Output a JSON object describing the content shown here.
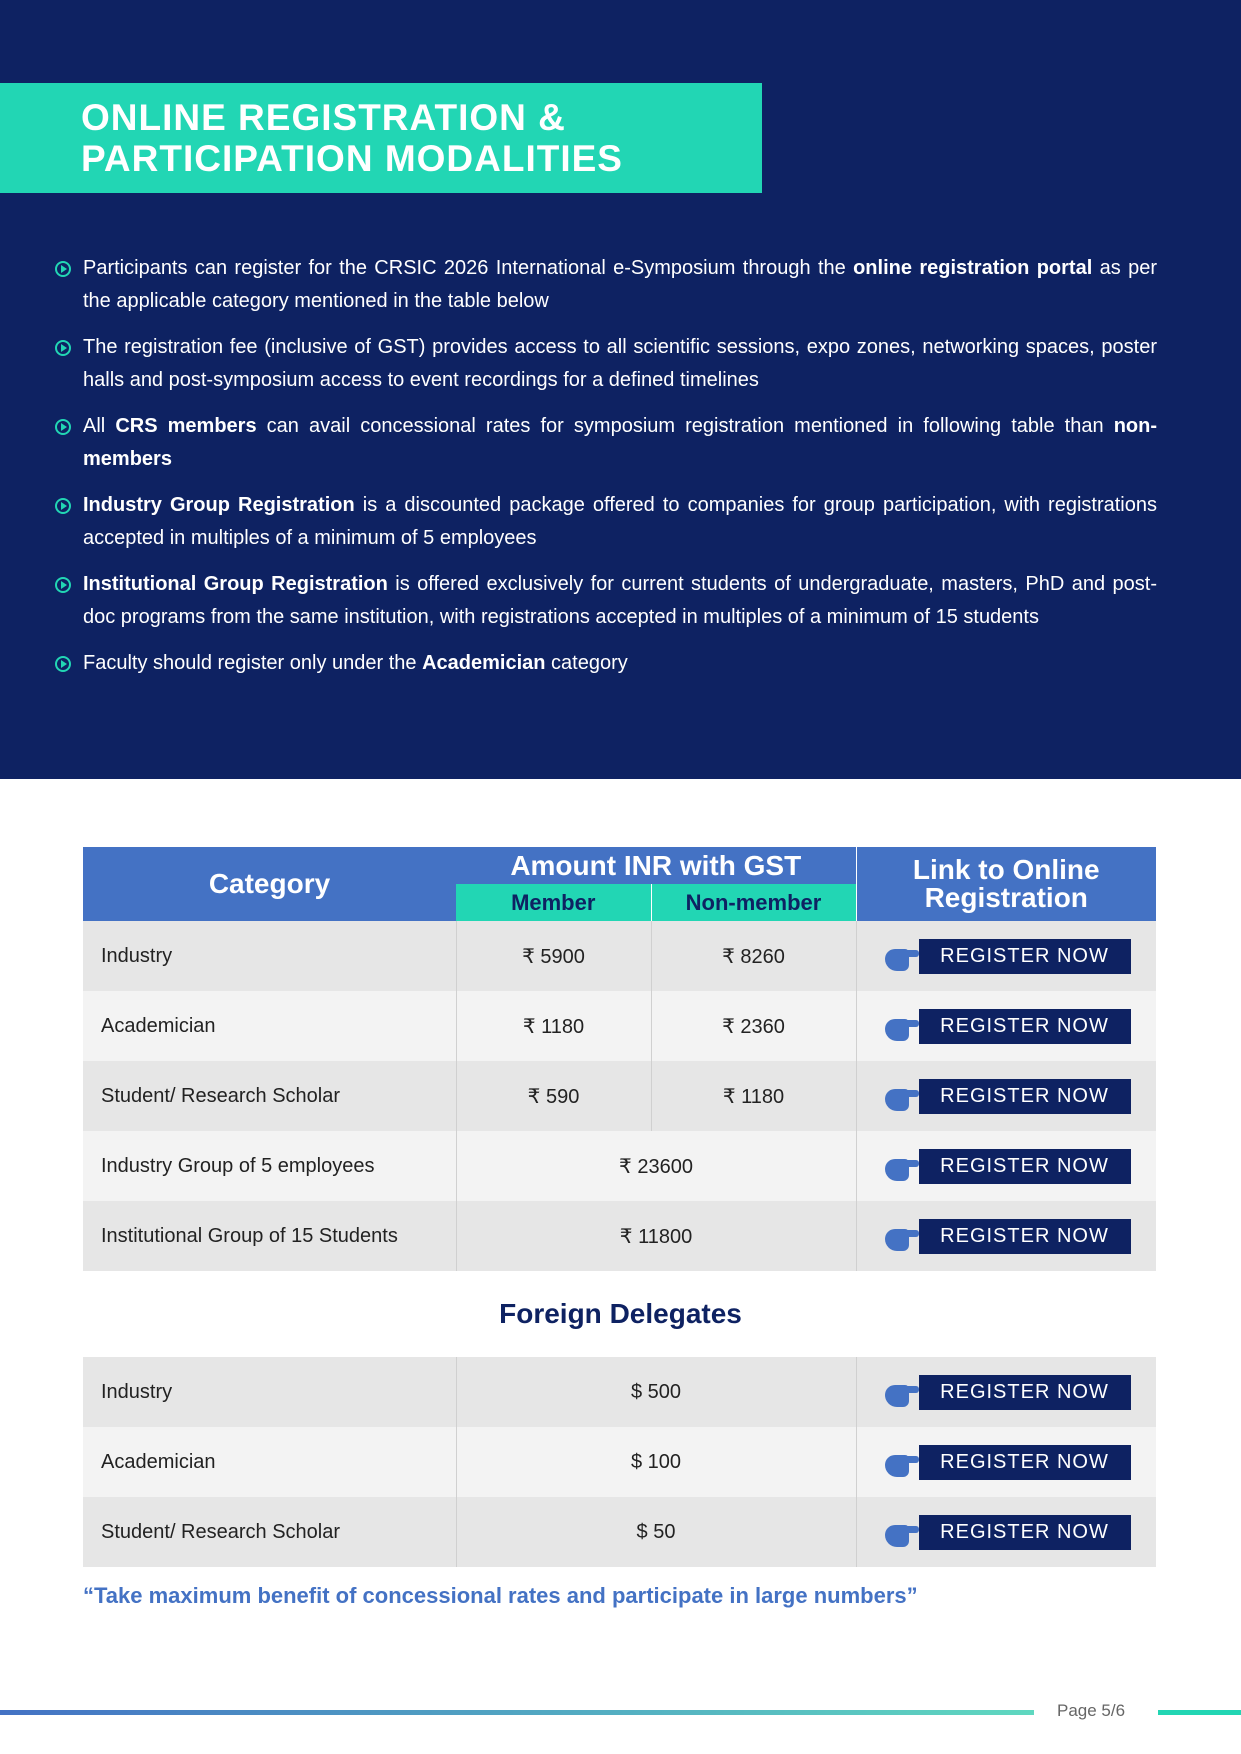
{
  "title": "ONLINE REGISTRATION & PARTICIPATION MODALITIES",
  "bullets": [
    {
      "pre": "Participants can register for the CRSIC 2026 International e-Symposium through the ",
      "bold": "online registration portal",
      "post": " as per the applicable category mentioned in the table below"
    },
    {
      "pre": "The registration fee (inclusive of GST) provides access to all scientific sessions, expo zones, networking spaces, poster halls and post-symposium access to event recordings for a defined timelines",
      "bold": "",
      "post": ""
    },
    {
      "pre": "All ",
      "bold": "CRS members",
      "post": " can avail concessional rates for symposium registration mentioned in following table than ",
      "bold2": "non-members"
    },
    {
      "pre": "",
      "bold": "Industry Group Registration",
      "post": " is a discounted package offered to companies for group participation, with registrations accepted in multiples of a minimum of 5 employees"
    },
    {
      "pre": "",
      "bold": "Institutional Group Registration",
      "post": " is offered exclusively for current students of undergraduate, masters, PhD and post-doc programs from the same institution, with registrations accepted in multiples of a minimum of 15 students"
    },
    {
      "pre": "Faculty should register only under the ",
      "bold": "Academician",
      "post": " category"
    }
  ],
  "table": {
    "headers": {
      "category": "Category",
      "amount": "Amount INR with GST",
      "member": "Member",
      "nonmember": "Non-member",
      "link": "Link to Online Registration"
    },
    "rows": [
      {
        "category": "Industry",
        "member": "₹ 5900",
        "nonmember": "₹ 8260"
      },
      {
        "category": "Academician",
        "member": "₹ 1180",
        "nonmember": "₹ 2360"
      },
      {
        "category": "Student/ Research Scholar",
        "member": "₹ 590",
        "nonmember": "₹ 1180"
      },
      {
        "category": "Industry Group of 5 employees",
        "amount": "₹ 23600"
      },
      {
        "category": "Institutional Group of 15 Students",
        "amount": "₹ 11800"
      }
    ],
    "button_label": "REGISTER NOW"
  },
  "foreign": {
    "title": "Foreign Delegates",
    "rows": [
      {
        "category": "Industry",
        "amount": "$ 500"
      },
      {
        "category": "Academician",
        "amount": "$ 100"
      },
      {
        "category": "Student/ Research Scholar",
        "amount": "$ 50"
      }
    ]
  },
  "quote": "“Take maximum benefit of concessional rates and participate in large numbers”",
  "footer": {
    "page": "Page 5/6"
  },
  "colors": {
    "navy": "#0e2262",
    "teal": "#22d6b4",
    "blue": "#4472c4"
  }
}
